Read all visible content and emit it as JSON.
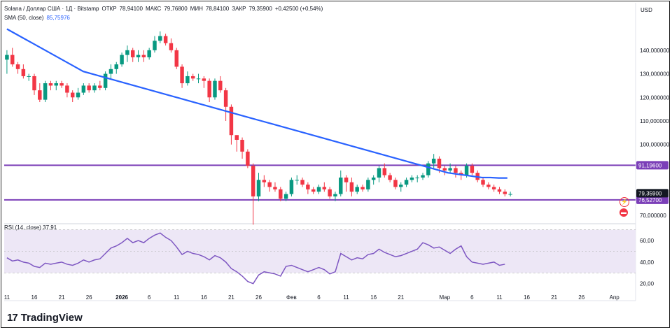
{
  "header": {
    "symbol_line": "Solana / Доллар США · 1Д · Bitstamp",
    "open_label": "ОТКР",
    "open": "78,94100",
    "high_label": "МАКС",
    "high": "79,76800",
    "low_label": "МИН",
    "low": "78,84100",
    "close_label": "ЗАКР",
    "close": "79,35900",
    "change": "+0,42500 (+0,54%)",
    "sma_label": "SMA (50, close)",
    "sma_value": "85,75976"
  },
  "currency": "USD",
  "rsi_legend": {
    "label": "RSI (14, close)",
    "value": "37,91"
  },
  "brand": {
    "logo": "17",
    "name": "TradingView"
  },
  "colors": {
    "up": "#089981",
    "down": "#f23645",
    "sma": "#2962ff",
    "rsi": "#7e57c2",
    "level": "#7b3fb8",
    "rsi_band": "#ede7f6"
  },
  "chart_data": {
    "type": "candlestick",
    "price_ticks": [
      "140,000000",
      "130,000000",
      "120,000000",
      "110,000000",
      "100,000000",
      "70,000000"
    ],
    "price_tick_values": [
      140,
      130,
      120,
      110,
      100,
      70
    ],
    "ylim": [
      67,
      153
    ],
    "rsi_ticks": [
      "60,00",
      "40,00",
      "20,00"
    ],
    "rsi_tick_values": [
      60,
      40,
      20
    ],
    "rsi_lim": [
      12,
      73
    ],
    "rsi_band": [
      30,
      70
    ],
    "x_ticks": [
      "11",
      "16",
      "21",
      "26",
      "2026",
      "6",
      "11",
      "16",
      "21",
      "26",
      "Фев",
      "6",
      "11",
      "16",
      "21",
      "Мар",
      "6",
      "11",
      "16",
      "21",
      "26",
      "Апр"
    ],
    "x_tick_index": [
      0,
      5,
      10,
      15,
      21,
      26,
      31,
      36,
      41,
      46,
      52,
      57,
      62,
      67,
      72,
      80,
      85,
      90,
      95,
      100,
      105,
      111
    ],
    "horizontal_levels": [
      {
        "value": 91.196,
        "label": "91,19600"
      },
      {
        "value": 76.527,
        "label": "76,52700"
      }
    ],
    "last_price": {
      "value": 79.359,
      "label": "79,35900"
    },
    "candles": [
      [
        136,
        140,
        130,
        138
      ],
      [
        138,
        141,
        133,
        134
      ],
      [
        134,
        135,
        130,
        132
      ],
      [
        132,
        134,
        128,
        129
      ],
      [
        129,
        130,
        127,
        129
      ],
      [
        129,
        130,
        121,
        123
      ],
      [
        123,
        126,
        118,
        119
      ],
      [
        119,
        127,
        118,
        126
      ],
      [
        126,
        127,
        123,
        125
      ],
      [
        125,
        127,
        123,
        126
      ],
      [
        126,
        127,
        124,
        125
      ],
      [
        125,
        126,
        120,
        122
      ],
      [
        122,
        123,
        118,
        120
      ],
      [
        120,
        124,
        119,
        122
      ],
      [
        122,
        126,
        121,
        125
      ],
      [
        125,
        126,
        122,
        123
      ],
      [
        123,
        126,
        122,
        125
      ],
      [
        125,
        127,
        123,
        124
      ],
      [
        124,
        131,
        123,
        130
      ],
      [
        130,
        134,
        128,
        132
      ],
      [
        132,
        135,
        130,
        134
      ],
      [
        134,
        139,
        133,
        138
      ],
      [
        138,
        142,
        135,
        140
      ],
      [
        140,
        141,
        135,
        137
      ],
      [
        137,
        140,
        135,
        138
      ],
      [
        138,
        140,
        135,
        137
      ],
      [
        137,
        141,
        136,
        140
      ],
      [
        140,
        146,
        139,
        144
      ],
      [
        144,
        148,
        143,
        146
      ],
      [
        146,
        147,
        142,
        143
      ],
      [
        143,
        145,
        139,
        140
      ],
      [
        140,
        141,
        132,
        133
      ],
      [
        133,
        134,
        124,
        126
      ],
      [
        126,
        131,
        125,
        129
      ],
      [
        129,
        130,
        127,
        128
      ],
      [
        128,
        130,
        126,
        128
      ],
      [
        128,
        129,
        124,
        127
      ],
      [
        127,
        128,
        118,
        120
      ],
      [
        120,
        128,
        119,
        127
      ],
      [
        127,
        129,
        122,
        123
      ],
      [
        123,
        124,
        110,
        116
      ],
      [
        116,
        117,
        100,
        104
      ],
      [
        104,
        104,
        97,
        102
      ],
      [
        102,
        103,
        94,
        97
      ],
      [
        97,
        98,
        90,
        91
      ],
      [
        91,
        92,
        66,
        78
      ],
      [
        78,
        88,
        76,
        85
      ],
      [
        85,
        87,
        82,
        84
      ],
      [
        84,
        85,
        80,
        82
      ],
      [
        82,
        84,
        80,
        81
      ],
      [
        81,
        82,
        76,
        77
      ],
      [
        77,
        80,
        76,
        79
      ],
      [
        79,
        86,
        78,
        85
      ],
      [
        85,
        87,
        83,
        85
      ],
      [
        85,
        86,
        82,
        83
      ],
      [
        83,
        84,
        79,
        81
      ],
      [
        81,
        82,
        79,
        80
      ],
      [
        80,
        83,
        79,
        82
      ],
      [
        82,
        84,
        80,
        81
      ],
      [
        81,
        82,
        77,
        78
      ],
      [
        78,
        80,
        76,
        79
      ],
      [
        79,
        89,
        78,
        86
      ],
      [
        86,
        87,
        80,
        84
      ],
      [
        84,
        86,
        78,
        80
      ],
      [
        80,
        83,
        79,
        82
      ],
      [
        82,
        83,
        80,
        81
      ],
      [
        81,
        86,
        80,
        85
      ],
      [
        85,
        87,
        83,
        86
      ],
      [
        86,
        91,
        84,
        90
      ],
      [
        90,
        92,
        86,
        87
      ],
      [
        87,
        88,
        84,
        85
      ],
      [
        85,
        86,
        81,
        82
      ],
      [
        82,
        84,
        80,
        83
      ],
      [
        83,
        86,
        82,
        85
      ],
      [
        85,
        87,
        84,
        86
      ],
      [
        86,
        87,
        84,
        86
      ],
      [
        86,
        88,
        85,
        87
      ],
      [
        87,
        93,
        86,
        92
      ],
      [
        92,
        96,
        90,
        94
      ],
      [
        94,
        95,
        88,
        90
      ],
      [
        90,
        91,
        87,
        89
      ],
      [
        89,
        92,
        88,
        90
      ],
      [
        90,
        91,
        86,
        88
      ],
      [
        88,
        89,
        85,
        87
      ],
      [
        87,
        92,
        86,
        91
      ],
      [
        91,
        92,
        87,
        88
      ],
      [
        88,
        89,
        84,
        85
      ],
      [
        85,
        86,
        82,
        83
      ],
      [
        83,
        84,
        81,
        82
      ],
      [
        82,
        83,
        80,
        81
      ],
      [
        81,
        82,
        79,
        80
      ],
      [
        80,
        81,
        78,
        79
      ],
      [
        79,
        80,
        78,
        79
      ]
    ],
    "sma": [
      149,
      147,
      145,
      143,
      141,
      139,
      137,
      135,
      133,
      131,
      130,
      129,
      128,
      127,
      126,
      125,
      124,
      123,
      122,
      121,
      120,
      119,
      118,
      117,
      116,
      115,
      114,
      113,
      112,
      111,
      110,
      109,
      108,
      107,
      106,
      105,
      104,
      103,
      102,
      101,
      100,
      99,
      98,
      97,
      96,
      95,
      94,
      93,
      92,
      91,
      90,
      89,
      88,
      87.5,
      87,
      86.5,
      86,
      86,
      85.8,
      85.8
    ],
    "rsi": [
      44,
      41,
      42,
      40,
      39,
      36,
      35,
      39,
      38,
      39,
      40,
      38,
      37,
      39,
      42,
      40,
      42,
      43,
      48,
      53,
      55,
      58,
      62,
      58,
      60,
      58,
      62,
      65,
      67,
      63,
      60,
      54,
      47,
      50,
      48,
      47,
      45,
      42,
      46,
      44,
      40,
      34,
      31,
      27,
      22,
      20,
      28,
      31,
      30,
      29,
      27,
      36,
      37,
      35,
      33,
      31,
      33,
      35,
      33,
      29,
      31,
      48,
      45,
      42,
      44,
      43,
      47,
      48,
      52,
      49,
      47,
      45,
      46,
      48,
      50,
      52,
      58,
      56,
      53,
      54,
      51,
      48,
      52,
      55,
      45,
      40,
      39,
      38,
      39,
      40,
      37,
      38
    ]
  }
}
